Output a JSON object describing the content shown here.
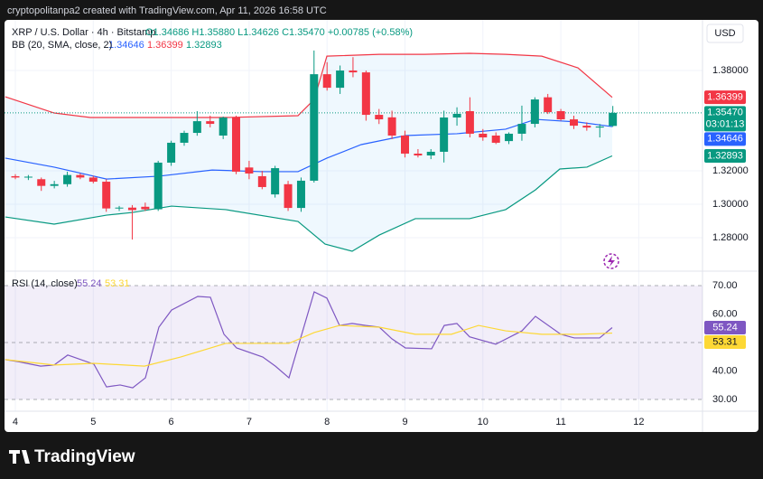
{
  "header": "cryptopolitanpa2 created with TradingView.com, Apr 11, 2026 16:58 UTC",
  "brand": "TradingView",
  "chart_data": {
    "type": "candlestick",
    "symbol_label": "XRP / U.S. Dollar · 4h · Bitstamp",
    "ohlc_label": "O1.34686 H1.35880 L1.34626 C1.35470 +0.00785 (+0.58%)",
    "currency": "USD",
    "up_color": "#089981",
    "down_color": "#f23645",
    "x": [
      4,
      4.167,
      4.333,
      4.5,
      4.667,
      4.833,
      5,
      5.167,
      5.333,
      5.5,
      5.667,
      5.833,
      6,
      6.167,
      6.333,
      6.5,
      6.667,
      6.833,
      7,
      7.167,
      7.333,
      7.5,
      7.667,
      7.833,
      8,
      8.167,
      8.333,
      8.5,
      8.667,
      8.833,
      9,
      9.167,
      9.333,
      9.5,
      9.667,
      9.833,
      10,
      10.167,
      10.333,
      10.5,
      10.667,
      10.833,
      11,
      11.167,
      11.333,
      11.5,
      11.667
    ],
    "open": [
      1.3168,
      1.316,
      1.315,
      1.311,
      1.312,
      1.3175,
      1.316,
      1.3135,
      1.2975,
      1.298,
      1.2985,
      1.297,
      1.3249,
      1.3368,
      1.3427,
      1.3497,
      1.3411,
      1.3522,
      1.322,
      1.3168,
      1.3059,
      1.312,
      1.2978,
      1.3141,
      1.3778,
      1.3697,
      1.38,
      1.3789,
      1.3535,
      1.352,
      1.3411,
      1.3303,
      1.3292,
      1.3314,
      1.3519,
      1.3557,
      1.3422,
      1.3411,
      1.3378,
      1.3422,
      1.3481,
      1.364,
      1.3557,
      1.3508,
      1.347,
      1.3459,
      1.34686
    ],
    "high": [
      1.318,
      1.3175,
      1.316,
      1.314,
      1.3195,
      1.3185,
      1.317,
      1.315,
      1.299,
      1.2995,
      1.301,
      1.326,
      1.338,
      1.344,
      1.3557,
      1.353,
      1.3525,
      1.353,
      1.326,
      1.32,
      1.323,
      1.314,
      1.316,
      1.392,
      1.385,
      1.383,
      1.388,
      1.38,
      1.357,
      1.356,
      1.344,
      1.333,
      1.333,
      1.356,
      1.358,
      1.364,
      1.345,
      1.343,
      1.343,
      1.359,
      1.364,
      1.366,
      1.357,
      1.353,
      1.349,
      1.348,
      1.3588
    ],
    "low": [
      1.315,
      1.3145,
      1.308,
      1.3095,
      1.3105,
      1.315,
      1.3125,
      1.2955,
      1.296,
      1.2789,
      1.296,
      1.296,
      1.323,
      1.335,
      1.341,
      1.346,
      1.339,
      1.318,
      1.315,
      1.309,
      1.304,
      1.296,
      1.2955,
      1.313,
      1.368,
      1.366,
      1.376,
      1.35,
      1.348,
      1.339,
      1.328,
      1.328,
      1.327,
      1.325,
      1.347,
      1.34,
      1.338,
      1.336,
      1.336,
      1.338,
      1.346,
      1.354,
      1.35,
      1.345,
      1.344,
      1.34,
      1.34626
    ],
    "close": [
      1.316,
      1.3165,
      1.311,
      1.312,
      1.3175,
      1.316,
      1.3135,
      1.2975,
      1.298,
      1.2965,
      1.297,
      1.3249,
      1.3368,
      1.3427,
      1.3497,
      1.3481,
      1.3519,
      1.3195,
      1.3184,
      1.3103,
      1.3216,
      1.2978,
      1.3141,
      1.3778,
      1.3697,
      1.38,
      1.3789,
      1.3535,
      1.3508,
      1.3411,
      1.3303,
      1.3292,
      1.3314,
      1.3519,
      1.3541,
      1.3422,
      1.34,
      1.3368,
      1.3422,
      1.3481,
      1.3627,
      1.3551,
      1.3508,
      1.347,
      1.3459,
      1.3465,
      1.3547
    ],
    "last_price": {
      "value": 1.3547,
      "label": "1.35470"
    },
    "countdown": "03:01:13",
    "xlim": [
      3.861,
      12.818
    ],
    "xticks": [
      4,
      5,
      6,
      7,
      8,
      9,
      10,
      11,
      12
    ],
    "ylim": [
      1.26,
      1.4103
    ],
    "yticks": [
      {
        "value": 1.28,
        "label": "1.28000"
      },
      {
        "value": 1.3,
        "label": "1.30000"
      },
      {
        "value": 1.32,
        "label": "1.32000"
      },
      {
        "value": 1.38,
        "label": "1.38000"
      }
    ],
    "grid": true,
    "bollinger": {
      "label": "BB (20, SMA, close, 2)",
      "fill": "#2196f3",
      "series": [
        {
          "color": "#2962ff",
          "x": [
            3.87,
            4.498,
            5.17,
            5.842,
            6.526,
            7.163,
            7.627,
            7.998,
            8.438,
            9.006,
            9.666,
            10.292,
            10.674,
            11.219,
            11.659
          ],
          "values": [
            1.3276,
            1.3222,
            1.3151,
            1.3168,
            1.3205,
            1.3195,
            1.3195,
            1.3276,
            1.3357,
            1.3411,
            1.3422,
            1.3449,
            1.3508,
            1.3492,
            1.34646
          ]
        },
        {
          "color": "#f23645",
          "x": [
            3.87,
            4.498,
            4.962,
            5.842,
            6.7,
            7.627,
            7.835,
            7.998,
            8.67,
            9.249,
            9.829,
            10.292,
            10.756,
            11.219,
            11.659
          ],
          "values": [
            1.3643,
            1.3546,
            1.3519,
            1.3519,
            1.3519,
            1.353,
            1.3627,
            1.3886,
            1.3897,
            1.3897,
            1.3903,
            1.3897,
            1.3886,
            1.3816,
            1.36399
          ]
        },
        {
          "color": "#089981",
          "x": [
            3.87,
            4.498,
            5.17,
            5.506,
            6.005,
            6.7,
            7.627,
            7.975,
            8.322,
            8.67,
            9.133,
            9.829,
            10.292,
            10.674,
            10.987,
            11.335,
            11.659
          ],
          "values": [
            1.2924,
            1.2881,
            1.2935,
            1.2951,
            1.2989,
            1.2968,
            1.2897,
            1.2762,
            1.2719,
            1.2816,
            1.2914,
            1.2914,
            1.2968,
            1.3086,
            1.3211,
            1.3222,
            1.32893
          ]
        }
      ]
    },
    "rsi": {
      "label": "RSI (14, close)",
      "ylim": [
        25.87,
        75.08
      ],
      "yticks": [
        {
          "value": 30,
          "label": "30.00"
        },
        {
          "value": 40,
          "label": "40.00"
        },
        {
          "value": 60,
          "label": "60.00"
        },
        {
          "value": 70,
          "label": "70.00"
        }
      ],
      "levels": [
        30,
        50,
        70
      ],
      "band_color": "#7e57c2",
      "series": [
        {
          "color": "#7e57c2",
          "x": [
            3.87,
            4.035,
            4.324,
            4.498,
            4.672,
            5.008,
            5.17,
            5.344,
            5.506,
            5.669,
            5.842,
            6.004,
            6.341,
            6.503,
            6.677,
            6.839,
            7.175,
            7.337,
            7.511,
            7.835,
            7.998,
            8.16,
            8.322,
            8.496,
            8.67,
            8.832,
            9.006,
            9.342,
            9.504,
            9.666,
            9.829,
            10.165,
            10.501,
            10.674,
            10.999,
            11.173,
            11.497,
            11.659
          ],
          "values": [
            44.0,
            43.3,
            41.7,
            42.1,
            45.6,
            42.4,
            34.4,
            35.1,
            34.1,
            37.6,
            55.4,
            61.4,
            66.2,
            65.9,
            52.9,
            48.1,
            44.9,
            41.7,
            37.6,
            67.8,
            65.6,
            56.0,
            56.7,
            56.0,
            55.4,
            51.3,
            48.1,
            47.8,
            56.0,
            56.7,
            52.0,
            49.4,
            54.1,
            59.2,
            52.9,
            51.6,
            51.6,
            55.24
          ]
        },
        {
          "color": "#fdd835",
          "x": [
            3.87,
            4.498,
            5.008,
            5.657,
            6.12,
            6.7,
            7.511,
            7.835,
            8.16,
            8.67,
            9.133,
            9.596,
            9.944,
            10.292,
            10.756,
            11.219,
            11.659
          ],
          "values": [
            44.0,
            42.1,
            42.7,
            41.7,
            44.9,
            49.7,
            49.7,
            53.5,
            56.0,
            55.4,
            52.9,
            52.9,
            56.0,
            54.1,
            52.9,
            52.9,
            53.31
          ]
        }
      ]
    }
  }
}
